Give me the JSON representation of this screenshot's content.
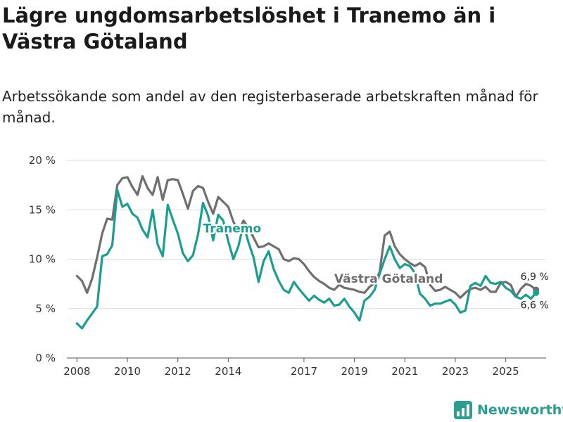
{
  "header": {
    "title": "Lägre ungdomsarbetslöshet i Tranemo än i Västra Götaland",
    "subtitle": "Arbetssökande som andel av den registerbaserade arbetskraften månad för månad."
  },
  "brand": {
    "name": "Newsworthy",
    "color": "#2a9e8f"
  },
  "chart_data": {
    "type": "line",
    "title": "Lägre ungdomsarbetslöshet i Tranemo än i Västra Götaland",
    "ylim": [
      0,
      20
    ],
    "xlim": [
      2007.6,
      2026.6
    ],
    "y_ticks": [
      {
        "value": 0,
        "label": "0 %"
      },
      {
        "value": 5,
        "label": "5 %"
      },
      {
        "value": 10,
        "label": "10 %"
      },
      {
        "value": 15,
        "label": "15 %"
      },
      {
        "value": 20,
        "label": "20 %"
      }
    ],
    "x_ticks": [
      {
        "value": 2008,
        "label": "2008"
      },
      {
        "value": 2010,
        "label": "2010"
      },
      {
        "value": 2012,
        "label": "2012"
      },
      {
        "value": 2014,
        "label": "2014"
      },
      {
        "value": 2017,
        "label": "2017"
      },
      {
        "value": 2019,
        "label": "2019"
      },
      {
        "value": 2021,
        "label": "2021"
      },
      {
        "value": 2023,
        "label": "2023"
      },
      {
        "value": 2025,
        "label": "2025"
      }
    ],
    "grid": true,
    "series": [
      {
        "name": "Västra Götaland",
        "color": "#6f6f6f",
        "label_x": 2018.2,
        "label_y": 7.6,
        "end_label": "6,9 %",
        "x": [
          2008.0,
          2008.2,
          2008.4,
          2008.6,
          2008.8,
          2009.0,
          2009.2,
          2009.4,
          2009.6,
          2009.8,
          2010.0,
          2010.2,
          2010.4,
          2010.6,
          2010.8,
          2011.0,
          2011.2,
          2011.4,
          2011.6,
          2011.8,
          2012.0,
          2012.2,
          2012.4,
          2012.6,
          2012.8,
          2013.0,
          2013.2,
          2013.4,
          2013.6,
          2013.8,
          2014.0,
          2014.2,
          2014.4,
          2014.6,
          2014.8,
          2015.0,
          2015.2,
          2015.4,
          2015.6,
          2015.8,
          2016.0,
          2016.2,
          2016.4,
          2016.6,
          2016.8,
          2017.0,
          2017.2,
          2017.4,
          2017.6,
          2017.8,
          2018.0,
          2018.2,
          2018.4,
          2018.6,
          2018.8,
          2019.0,
          2019.2,
          2019.4,
          2019.6,
          2019.8,
          2020.0,
          2020.2,
          2020.4,
          2020.6,
          2020.8,
          2021.0,
          2021.2,
          2021.4,
          2021.6,
          2021.8,
          2022.0,
          2022.2,
          2022.4,
          2022.6,
          2022.8,
          2023.0,
          2023.2,
          2023.4,
          2023.6,
          2023.8,
          2024.0,
          2024.2,
          2024.4,
          2024.6,
          2024.8,
          2025.0,
          2025.2,
          2025.4,
          2025.6,
          2025.8,
          2026.0,
          2026.2
        ],
        "values": [
          8.3,
          7.8,
          6.6,
          8.0,
          10.2,
          12.6,
          14.1,
          14.0,
          17.5,
          18.2,
          18.3,
          17.3,
          16.5,
          18.4,
          17.2,
          16.5,
          18.3,
          16.0,
          18.0,
          18.1,
          18.0,
          16.6,
          15.1,
          16.9,
          17.4,
          17.2,
          15.8,
          14.6,
          16.3,
          15.8,
          15.3,
          13.8,
          12.8,
          13.9,
          13.2,
          12.2,
          11.2,
          11.3,
          11.6,
          11.3,
          11.0,
          10.0,
          9.8,
          10.1,
          10.0,
          9.5,
          8.8,
          8.2,
          7.8,
          7.5,
          7.1,
          6.9,
          7.4,
          7.1,
          7.0,
          6.9,
          6.7,
          6.6,
          7.2,
          7.6,
          8.7,
          12.4,
          12.8,
          11.3,
          10.5,
          10.0,
          9.6,
          9.3,
          9.6,
          9.2,
          7.4,
          6.8,
          6.9,
          7.2,
          6.9,
          6.6,
          6.1,
          6.6,
          7.0,
          7.1,
          6.9,
          7.2,
          6.7,
          6.7,
          7.6,
          7.7,
          7.4,
          6.2,
          7.0,
          7.5,
          7.3,
          6.9
        ]
      },
      {
        "name": "Tranemo",
        "color": "#1a9e8f",
        "label_x": 2013.0,
        "label_y": 12.7,
        "end_label": "6,6 %",
        "x": [
          2008.0,
          2008.2,
          2008.4,
          2008.6,
          2008.8,
          2009.0,
          2009.2,
          2009.4,
          2009.6,
          2009.8,
          2010.0,
          2010.2,
          2010.4,
          2010.6,
          2010.8,
          2011.0,
          2011.2,
          2011.4,
          2011.6,
          2011.8,
          2012.0,
          2012.2,
          2012.4,
          2012.6,
          2012.8,
          2013.0,
          2013.2,
          2013.4,
          2013.6,
          2013.8,
          2014.0,
          2014.2,
          2014.4,
          2014.6,
          2014.8,
          2015.0,
          2015.2,
          2015.4,
          2015.6,
          2015.8,
          2016.0,
          2016.2,
          2016.4,
          2016.6,
          2016.8,
          2017.0,
          2017.2,
          2017.4,
          2017.6,
          2017.8,
          2018.0,
          2018.2,
          2018.4,
          2018.6,
          2018.8,
          2019.0,
          2019.2,
          2019.4,
          2019.6,
          2019.8,
          2020.0,
          2020.2,
          2020.4,
          2020.6,
          2020.8,
          2021.0,
          2021.2,
          2021.4,
          2021.6,
          2021.8,
          2022.0,
          2022.2,
          2022.4,
          2022.6,
          2022.8,
          2023.0,
          2023.2,
          2023.4,
          2023.6,
          2023.8,
          2024.0,
          2024.2,
          2024.4,
          2024.6,
          2024.8,
          2025.0,
          2025.2,
          2025.4,
          2025.6,
          2025.8,
          2026.0,
          2026.2
        ],
        "values": [
          3.5,
          3.0,
          3.8,
          4.5,
          5.2,
          10.3,
          10.5,
          11.4,
          17.0,
          15.3,
          15.6,
          14.6,
          14.2,
          13.0,
          12.2,
          15.0,
          11.5,
          10.3,
          15.5,
          14.0,
          12.6,
          10.6,
          9.8,
          10.4,
          12.5,
          15.7,
          14.4,
          11.9,
          14.5,
          13.9,
          11.8,
          10.0,
          11.3,
          13.5,
          11.7,
          10.2,
          7.7,
          9.8,
          10.8,
          9.0,
          7.8,
          6.9,
          6.6,
          7.7,
          7.0,
          6.4,
          5.8,
          6.3,
          5.9,
          5.6,
          6.0,
          5.3,
          5.4,
          6.0,
          5.2,
          4.6,
          3.8,
          5.8,
          6.2,
          6.9,
          8.5,
          10.0,
          11.3,
          10.0,
          9.1,
          9.5,
          9.3,
          8.6,
          6.5,
          6.0,
          5.3,
          5.5,
          5.5,
          5.7,
          5.9,
          5.4,
          4.6,
          4.8,
          7.3,
          7.6,
          7.3,
          8.3,
          7.6,
          7.5,
          7.7,
          7.1,
          6.8,
          6.2,
          6.0,
          6.4,
          6.0,
          6.6
        ]
      }
    ]
  }
}
